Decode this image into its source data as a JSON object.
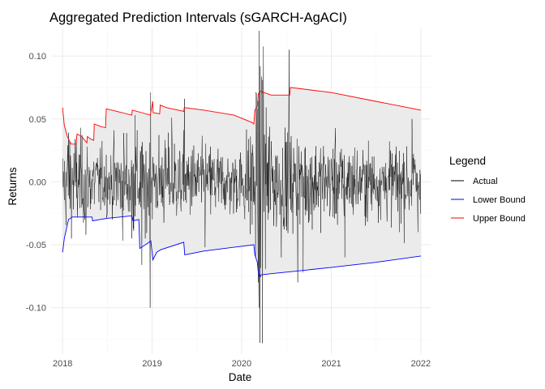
{
  "chart_data": {
    "type": "line",
    "title": "Aggregated Prediction Intervals (sGARCH-AgACI)",
    "xlabel": "Date",
    "ylabel": "Returns",
    "xlim": [
      "2017-11-15",
      "2022-02-10"
    ],
    "ylim": [
      -0.137,
      0.122
    ],
    "x_ticks": [
      "2018",
      "2019",
      "2020",
      "2021",
      "2022"
    ],
    "x_tick_dates": [
      "2018-01-01",
      "2019-01-01",
      "2020-01-01",
      "2021-01-01",
      "2022-01-01"
    ],
    "y_ticks": [
      -0.1,
      -0.05,
      0.0,
      0.05,
      0.1
    ],
    "y_tick_labels": [
      "-0.10",
      "-0.05",
      "0.00",
      "0.05",
      "0.10"
    ],
    "grid": true,
    "legend": {
      "title": "Legend",
      "placement": "right",
      "entries": [
        {
          "label": "Actual",
          "color": "#000000"
        },
        {
          "label": "Lower Bound",
          "color": "#0000ff"
        },
        {
          "label": "Upper Bound",
          "color": "#ff0000"
        }
      ]
    },
    "band_fill": "#ebebeb",
    "series": [
      {
        "name": "Upper Bound",
        "color": "#ff0000",
        "points": [
          [
            "2018-01-01",
            0.059
          ],
          [
            "2018-01-08",
            0.045
          ],
          [
            "2018-01-20",
            0.036
          ],
          [
            "2018-02-05",
            0.03
          ],
          [
            "2018-02-25",
            0.03
          ],
          [
            "2018-03-01",
            0.038
          ],
          [
            "2018-03-20",
            0.036
          ],
          [
            "2018-04-10",
            0.031
          ],
          [
            "2018-04-12",
            0.036
          ],
          [
            "2018-04-25",
            0.034
          ],
          [
            "2018-05-08",
            0.033
          ],
          [
            "2018-05-10",
            0.046
          ],
          [
            "2018-06-05",
            0.044
          ],
          [
            "2018-06-25",
            0.043
          ],
          [
            "2018-06-28",
            0.058
          ],
          [
            "2018-09-01",
            0.055
          ],
          [
            "2018-10-10",
            0.053
          ],
          [
            "2018-10-12",
            0.057
          ],
          [
            "2018-11-20",
            0.055
          ],
          [
            "2018-12-25",
            0.053
          ],
          [
            "2019-01-03",
            0.064
          ],
          [
            "2019-01-05",
            0.055
          ],
          [
            "2019-02-01",
            0.054
          ],
          [
            "2019-02-03",
            0.061
          ],
          [
            "2019-03-01",
            0.059
          ],
          [
            "2019-05-10",
            0.056
          ],
          [
            "2019-05-12",
            0.059
          ],
          [
            "2019-08-01",
            0.057
          ],
          [
            "2019-12-01",
            0.053
          ],
          [
            "2020-02-15",
            0.047
          ],
          [
            "2020-02-20",
            0.046
          ],
          [
            "2020-02-24",
            0.057
          ],
          [
            "2020-03-05",
            0.06
          ],
          [
            "2020-03-09",
            0.07
          ],
          [
            "2020-03-16",
            0.072
          ],
          [
            "2020-03-20",
            0.072
          ],
          [
            "2020-04-01",
            0.071
          ],
          [
            "2020-05-01",
            0.069
          ],
          [
            "2020-07-15",
            0.069
          ],
          [
            "2020-07-18",
            0.075
          ],
          [
            "2021-01-01",
            0.071
          ],
          [
            "2021-07-01",
            0.064
          ],
          [
            "2022-01-01",
            0.057
          ]
        ]
      },
      {
        "name": "Lower Bound",
        "color": "#0000ff",
        "points": [
          [
            "2018-01-01",
            -0.056
          ],
          [
            "2018-01-08",
            -0.045
          ],
          [
            "2018-01-25",
            -0.03
          ],
          [
            "2018-02-10",
            -0.028
          ],
          [
            "2018-05-01",
            -0.028
          ],
          [
            "2018-05-03",
            -0.031
          ],
          [
            "2018-07-01",
            -0.029
          ],
          [
            "2018-10-10",
            -0.027
          ],
          [
            "2018-10-15",
            -0.031
          ],
          [
            "2018-11-08",
            -0.03
          ],
          [
            "2018-11-12",
            -0.053
          ],
          [
            "2018-12-20",
            -0.048
          ],
          [
            "2018-12-27",
            -0.047
          ],
          [
            "2019-01-04",
            -0.062
          ],
          [
            "2019-01-20",
            -0.056
          ],
          [
            "2019-02-05",
            -0.054
          ],
          [
            "2019-05-10",
            -0.048
          ],
          [
            "2019-05-14",
            -0.058
          ],
          [
            "2019-08-01",
            -0.055
          ],
          [
            "2019-12-01",
            -0.052
          ],
          [
            "2020-02-20",
            -0.05
          ],
          [
            "2020-02-24",
            -0.058
          ],
          [
            "2020-03-05",
            -0.064
          ],
          [
            "2020-03-09",
            -0.072
          ],
          [
            "2020-03-16",
            -0.076
          ],
          [
            "2020-03-20",
            -0.074
          ],
          [
            "2020-05-01",
            -0.073
          ],
          [
            "2020-08-10",
            -0.071
          ],
          [
            "2021-01-01",
            -0.068
          ],
          [
            "2021-07-01",
            -0.064
          ],
          [
            "2022-01-01",
            -0.059
          ]
        ]
      },
      {
        "name": "Actual",
        "color": "#000000",
        "noise_levels": [
          [
            "2018-01-01",
            0.014
          ],
          [
            "2018-02-01",
            0.022
          ],
          [
            "2018-04-01",
            0.016
          ],
          [
            "2018-07-01",
            0.012
          ],
          [
            "2018-10-01",
            0.021
          ],
          [
            "2019-01-01",
            0.018
          ],
          [
            "2019-05-01",
            0.016
          ],
          [
            "2019-08-01",
            0.015
          ],
          [
            "2020-01-01",
            0.013
          ],
          [
            "2020-02-20",
            0.03
          ],
          [
            "2020-03-20",
            0.055
          ],
          [
            "2020-05-01",
            0.022
          ],
          [
            "2020-09-01",
            0.018
          ],
          [
            "2021-01-01",
            0.017
          ],
          [
            "2021-06-01",
            0.014
          ],
          [
            "2022-01-01",
            0.016
          ]
        ],
        "spikes": [
          [
            "2018-01-25",
            0.039
          ],
          [
            "2018-02-06",
            -0.045
          ],
          [
            "2018-04-06",
            -0.042
          ],
          [
            "2018-10-10",
            -0.045
          ],
          [
            "2018-10-24",
            0.053
          ],
          [
            "2018-11-20",
            -0.066
          ],
          [
            "2018-12-04",
            -0.045
          ],
          [
            "2018-12-24",
            -0.1
          ],
          [
            "2018-12-26",
            0.071
          ],
          [
            "2019-03-22",
            0.051
          ],
          [
            "2019-05-13",
            0.066
          ],
          [
            "2019-08-05",
            -0.052
          ],
          [
            "2020-02-27",
            -0.06
          ],
          [
            "2020-03-02",
            0.07
          ],
          [
            "2020-03-09",
            -0.08
          ],
          [
            "2020-03-12",
            -0.1
          ],
          [
            "2020-03-13",
            0.12
          ],
          [
            "2020-03-16",
            -0.128
          ],
          [
            "2020-03-17",
            0.092
          ],
          [
            "2020-03-24",
            0.07
          ],
          [
            "2020-06-11",
            -0.06
          ],
          [
            "2020-07-13",
            0.105
          ],
          [
            "2020-08-15",
            -0.08
          ],
          [
            "2020-09-08",
            -0.072
          ],
          [
            "2021-02-25",
            -0.06
          ],
          [
            "2021-10-05",
            -0.04
          ],
          [
            "2021-11-26",
            0.05
          ],
          [
            "2021-12-20",
            -0.04
          ]
        ]
      }
    ]
  }
}
